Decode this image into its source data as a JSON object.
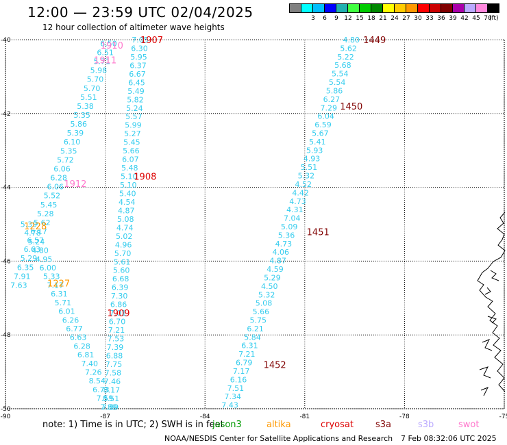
{
  "header": {
    "title": "12:00 — 23:59 UTC 02/04/2025",
    "subtitle": "12 hour collection of altimeter wave heights"
  },
  "legend": {
    "unit": "(ft)",
    "bins": [
      {
        "color": "#808080",
        "label": ""
      },
      {
        "color": "#00ffff",
        "label": "3"
      },
      {
        "color": "#00bfff",
        "label": "6"
      },
      {
        "color": "#0000ff",
        "label": "9"
      },
      {
        "color": "#20b0b0",
        "label": "12"
      },
      {
        "color": "#40ff40",
        "label": "15"
      },
      {
        "color": "#00cc00",
        "label": "18"
      },
      {
        "color": "#008800",
        "label": "21"
      },
      {
        "color": "#ffff00",
        "label": "24"
      },
      {
        "color": "#ffcc00",
        "label": "27"
      },
      {
        "color": "#ff9900",
        "label": "30"
      },
      {
        "color": "#ff0000",
        "label": "33"
      },
      {
        "color": "#cc0000",
        "label": "36"
      },
      {
        "color": "#800000",
        "label": "39"
      },
      {
        "color": "#aa00aa",
        "label": "42"
      },
      {
        "color": "#bbaaff",
        "label": "45"
      },
      {
        "color": "#ff88dd",
        "label": "70"
      },
      {
        "color": "#000000",
        "label": ""
      }
    ]
  },
  "map": {
    "lon_range": [
      -90,
      -75
    ],
    "lat_range": [
      -50,
      -40
    ],
    "lon_ticks": [
      "-90",
      "-87",
      "-84",
      "-81",
      "-78",
      "-75"
    ],
    "lat_ticks": [
      "-40",
      "-42",
      "-44",
      "-46",
      "-48",
      "-50"
    ],
    "label_color": "#33ccee",
    "track_labels": [
      {
        "text": "1907",
        "lon": -85.6,
        "lat": -40.0,
        "color": "#dd0000"
      },
      {
        "text": "1910",
        "lon": -86.8,
        "lat": -40.15,
        "color": "#ff77cc"
      },
      {
        "text": "1911",
        "lon": -87.0,
        "lat": -40.55,
        "color": "#ff77cc"
      },
      {
        "text": "1908",
        "lon": -85.8,
        "lat": -43.7,
        "color": "#dd0000"
      },
      {
        "text": "1912",
        "lon": -87.9,
        "lat": -43.9,
        "color": "#ff77cc"
      },
      {
        "text": "1228",
        "lon": -89.1,
        "lat": -45.05,
        "color": "#ff9900"
      },
      {
        "text": "1227",
        "lon": -88.4,
        "lat": -46.6,
        "color": "#ff9900"
      },
      {
        "text": "1909",
        "lon": -86.6,
        "lat": -47.4,
        "color": "#dd0000"
      },
      {
        "text": "1449",
        "lon": -78.9,
        "lat": -40.0,
        "color": "#800000"
      },
      {
        "text": "1450",
        "lon": -79.6,
        "lat": -41.8,
        "color": "#800000"
      },
      {
        "text": "1451",
        "lon": -80.6,
        "lat": -45.2,
        "color": "#800000"
      },
      {
        "text": "1452",
        "lon": -81.9,
        "lat": -48.8,
        "color": "#800000"
      }
    ],
    "tracks": [
      {
        "name": "1907",
        "start": [
          -85.95,
          -40.0
        ],
        "end": [
          -86.85,
          -49.95
        ],
        "values": [
          "7.05",
          "6.30",
          "5.95",
          "6.37",
          "6.67",
          "6.45",
          "5.49",
          "5.82",
          "5.24",
          "5.57",
          "5.99",
          "5.27",
          "5.45",
          "5.66",
          "6.07",
          "5.48",
          "5.10",
          "5.10",
          "5.40",
          "4.54",
          "4.87",
          "5.08",
          "4.74",
          "5.02",
          "4.96",
          "5.70",
          "5.61",
          "5.60",
          "6.68",
          "6.39",
          "7.30",
          "6.86",
          "7.01",
          "6.70",
          "7.21",
          "7.53",
          "7.39",
          "6.88",
          "7.75",
          "7.58",
          "7.46",
          "8.17",
          "8.51",
          "7.89"
        ]
      },
      {
        "name": "1227",
        "start": [
          -86.9,
          -40.1
        ],
        "end": [
          -89.6,
          -46.65
        ],
        "values": [
          "6.50",
          "6.51",
          "5.71",
          "5.98",
          "5.70",
          "5.70",
          "5.51",
          "5.38",
          "5.35",
          "5.86",
          "5.39",
          "6.10",
          "5.35",
          "5.72",
          "6.06",
          "6.28",
          "6.06",
          "5.52",
          "5.45",
          "5.28",
          "5.62",
          "6.17",
          "6.57",
          "6.63",
          "5.29",
          "6.35",
          "7.91",
          "7.63"
        ]
      },
      {
        "name": "1228",
        "start": [
          -89.3,
          -45.0
        ],
        "end": [
          -86.9,
          -49.95
        ],
        "values": [
          "5.39",
          "4.78",
          "5.24",
          "4.80",
          "4.95",
          "6.00",
          "5.33",
          "7.17",
          "6.31",
          "5.71",
          "6.01",
          "6.26",
          "6.77",
          "6.63",
          "6.28",
          "6.81",
          "7.40",
          "7.26",
          "8.54",
          "6.73",
          "7.59",
          "7.89"
        ]
      },
      {
        "name": "1449",
        "start": [
          -79.6,
          -40.0
        ],
        "end": [
          -83.25,
          -49.9
        ],
        "values": [
          "4.80",
          "5.62",
          "5.22",
          "5.68",
          "5.54",
          "5.54",
          "5.86",
          "6.27",
          "7.29",
          "6.04",
          "6.59",
          "5.67",
          "5.41",
          "5.93",
          "4.93",
          "5.51",
          "5.32",
          "4.52",
          "4.42",
          "4.73",
          "4.31",
          "7.04",
          "5.09",
          "5.36",
          "4.73",
          "4.06",
          "4.87",
          "4.59",
          "5.29",
          "4.50",
          "5.32",
          "5.08",
          "5.66",
          "5.75",
          "6.21",
          "5.84",
          "6.31",
          "7.21",
          "6.79",
          "7.17",
          "6.16",
          "7.51",
          "7.34",
          "7.43"
        ]
      }
    ]
  },
  "footer": {
    "note": "note:  1) Time is in UTC; 2) SWH is in feet",
    "satellites": [
      {
        "name": "jason3",
        "color": "#009900"
      },
      {
        "name": "altika",
        "color": "#ff9900"
      },
      {
        "name": "cryosat",
        "color": "#dd0000"
      },
      {
        "name": "s3a",
        "color": "#800000"
      },
      {
        "name": "s3b",
        "color": "#bbaaff"
      },
      {
        "name": "swot",
        "color": "#ff77cc"
      }
    ],
    "credit": "NOAA/NESDIS Center for Satellite Applications and Research",
    "timestamp": "7 Feb 08:32:06 UTC 2025"
  }
}
